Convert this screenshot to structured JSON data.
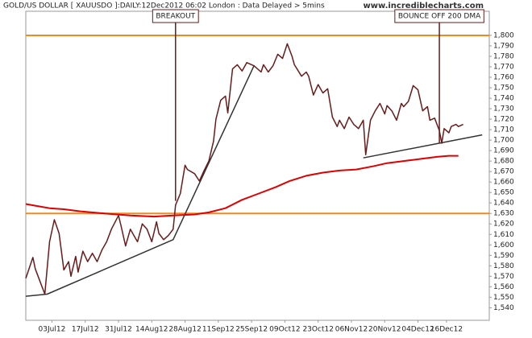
{
  "chart_data": {
    "type": "line",
    "title": "GOLD/US DOLLAR [ XAUUSDO ]:DAILY:12Dec2012 06:02 London : Data Delayed > 5mins",
    "watermark": "www.incrediblecharts.com",
    "xlim": [
      "2012-06-22",
      "2013-01-03"
    ],
    "xticks": [
      {
        "value": "2012-07-03",
        "label": "03Jul12"
      },
      {
        "value": "2012-07-17",
        "label": "17Jul12"
      },
      {
        "value": "2012-07-31",
        "label": "31Jul12"
      },
      {
        "value": "2012-08-14",
        "label": "14Aug12"
      },
      {
        "value": "2012-08-28",
        "label": "28Aug12"
      },
      {
        "value": "2012-09-11",
        "label": "11Sep12"
      },
      {
        "value": "2012-09-25",
        "label": "25Sep12"
      },
      {
        "value": "2012-10-09",
        "label": "09Oct12"
      },
      {
        "value": "2012-10-23",
        "label": "23Oct12"
      },
      {
        "value": "2012-11-06",
        "label": "06Nov12"
      },
      {
        "value": "2012-11-20",
        "label": "20Nov12"
      },
      {
        "value": "2012-12-04",
        "label": "04Dec12"
      },
      {
        "value": "2012-12-16",
        "label": "16Dec12"
      }
    ],
    "ylim": [
      1528,
      1823
    ],
    "yticks": [
      {
        "value": 1540,
        "label": "1,540"
      },
      {
        "value": 1550,
        "label": "1,550"
      },
      {
        "value": 1560,
        "label": "1,560"
      },
      {
        "value": 1570,
        "label": "1,570"
      },
      {
        "value": 1580,
        "label": "1,580"
      },
      {
        "value": 1590,
        "label": "1,590"
      },
      {
        "value": 1600,
        "label": "1,600"
      },
      {
        "value": 1610,
        "label": "1,610"
      },
      {
        "value": 1620,
        "label": "1,620"
      },
      {
        "value": 1630,
        "label": "1,630"
      },
      {
        "value": 1640,
        "label": "1,640"
      },
      {
        "value": 1650,
        "label": "1,650"
      },
      {
        "value": 1660,
        "label": "1,660"
      },
      {
        "value": 1670,
        "label": "1,670"
      },
      {
        "value": 1680,
        "label": "1,680"
      },
      {
        "value": 1690,
        "label": "1,690"
      },
      {
        "value": 1700,
        "label": "1,700"
      },
      {
        "value": 1710,
        "label": "1,710"
      },
      {
        "value": 1720,
        "label": "1,720"
      },
      {
        "value": 1730,
        "label": "1,730"
      },
      {
        "value": 1740,
        "label": "1,740"
      },
      {
        "value": 1750,
        "label": "1,750"
      },
      {
        "value": 1760,
        "label": "1,760"
      },
      {
        "value": 1770,
        "label": "1,770"
      },
      {
        "value": 1780,
        "label": "1,780"
      },
      {
        "value": 1790,
        "label": "1,790"
      },
      {
        "value": 1800,
        "label": "1,800"
      }
    ],
    "series": [
      {
        "color": "#6b1a1a",
        "width": 1.5,
        "x": [
          "2012-06-22",
          "2012-06-25",
          "2012-06-26",
          "2012-06-28",
          "2012-06-30",
          "2012-07-02",
          "2012-07-04",
          "2012-07-06",
          "2012-07-08",
          "2012-07-10",
          "2012-07-11",
          "2012-07-13",
          "2012-07-14",
          "2012-07-16",
          "2012-07-18",
          "2012-07-20",
          "2012-07-22",
          "2012-07-24",
          "2012-07-26",
          "2012-07-28",
          "2012-07-31",
          "2012-08-01",
          "2012-08-03",
          "2012-08-05",
          "2012-08-07",
          "2012-08-08",
          "2012-08-10",
          "2012-08-12",
          "2012-08-14",
          "2012-08-16",
          "2012-08-17",
          "2012-08-19",
          "2012-08-21",
          "2012-08-23",
          "2012-08-24",
          "2012-08-26",
          "2012-08-28",
          "2012-08-29",
          "2012-09-01",
          "2012-09-03",
          "2012-09-05",
          "2012-09-07",
          "2012-09-09",
          "2012-09-10",
          "2012-09-12",
          "2012-09-14",
          "2012-09-15",
          "2012-09-17",
          "2012-09-19",
          "2012-09-21",
          "2012-09-23",
          "2012-09-25",
          "2012-09-26",
          "2012-09-29",
          "2012-09-30",
          "2012-10-02",
          "2012-10-04",
          "2012-10-06",
          "2012-10-08",
          "2012-10-10",
          "2012-10-12",
          "2012-10-13",
          "2012-10-16",
          "2012-10-18",
          "2012-10-19",
          "2012-10-21",
          "2012-10-23",
          "2012-10-25",
          "2012-10-27",
          "2012-10-29",
          "2012-10-31",
          "2012-11-01",
          "2012-11-03",
          "2012-11-05",
          "2012-11-07",
          "2012-11-09",
          "2012-11-11",
          "2012-11-12",
          "2012-11-14",
          "2012-11-16",
          "2012-11-18",
          "2012-11-20",
          "2012-11-21",
          "2012-11-23",
          "2012-11-25",
          "2012-11-27",
          "2012-11-28",
          "2012-11-30",
          "2012-12-02",
          "2012-12-04",
          "2012-12-06",
          "2012-12-08",
          "2012-12-09",
          "2012-12-11",
          "2012-12-13",
          "2012-12-14",
          "2012-12-15",
          "2012-12-17",
          "2012-12-18",
          "2012-12-20",
          "2012-12-21",
          "2012-12-23"
        ],
        "values": [
          1568,
          1588,
          1577,
          1565,
          1553,
          1603,
          1624,
          1611,
          1576,
          1584,
          1570,
          1589,
          1574,
          1594,
          1584,
          1592,
          1584,
          1595,
          1603,
          1615,
          1628,
          1619,
          1599,
          1615,
          1607,
          1603,
          1620,
          1615,
          1603,
          1622,
          1611,
          1605,
          1609,
          1615,
          1638,
          1649,
          1676,
          1672,
          1668,
          1661,
          1671,
          1680,
          1699,
          1720,
          1738,
          1742,
          1726,
          1768,
          1772,
          1766,
          1774,
          1772,
          1771,
          1765,
          1772,
          1765,
          1771,
          1782,
          1778,
          1792,
          1780,
          1772,
          1761,
          1765,
          1761,
          1743,
          1753,
          1745,
          1749,
          1722,
          1713,
          1719,
          1711,
          1722,
          1715,
          1711,
          1719,
          1686,
          1719,
          1728,
          1735,
          1725,
          1733,
          1728,
          1719,
          1735,
          1732,
          1737,
          1752,
          1748,
          1728,
          1732,
          1719,
          1721,
          1709,
          1697,
          1711,
          1707,
          1713,
          1715,
          1713,
          1715
        ]
      },
      {
        "color": "#e00000",
        "width": 2,
        "x": [
          "2012-06-22",
          "2012-06-27",
          "2012-07-02",
          "2012-07-08",
          "2012-07-15",
          "2012-07-25",
          "2012-08-05",
          "2012-08-15",
          "2012-08-23",
          "2012-09-01",
          "2012-09-07",
          "2012-09-14",
          "2012-09-21",
          "2012-09-28",
          "2012-10-05",
          "2012-10-11",
          "2012-10-18",
          "2012-10-25",
          "2012-11-01",
          "2012-11-08",
          "2012-11-15",
          "2012-11-21",
          "2012-11-28",
          "2012-12-05",
          "2012-12-12",
          "2012-12-17",
          "2012-12-21"
        ],
        "values": [
          1639,
          1637,
          1635,
          1634,
          1632,
          1630,
          1628,
          1627,
          1628,
          1629,
          1631,
          1635,
          1643,
          1649,
          1655,
          1661,
          1666,
          1669,
          1671,
          1672,
          1675,
          1678,
          1680,
          1682,
          1684,
          1685,
          1685
        ]
      }
    ],
    "trendlines": [
      {
        "color": "#333333",
        "x": [
          "2012-06-22",
          "2012-07-01",
          "2012-08-23",
          "2012-09-26"
        ],
        "values": [
          1551,
          1553,
          1605,
          1771
        ]
      },
      {
        "color": "#333333",
        "x": [
          "2012-11-11",
          "2012-12-31"
        ],
        "values": [
          1683,
          1705
        ]
      }
    ],
    "hlines": [
      {
        "value": 1800,
        "color": "#f08a1c"
      },
      {
        "value": 1630,
        "color": "#f08a1c"
      }
    ],
    "annotations": [
      {
        "text": "BREAKOUT",
        "x": "2012-08-24",
        "y": 1642
      },
      {
        "text": "BOUNCE OFF 200 DMA",
        "x": "2012-12-13",
        "y": 1697
      }
    ]
  }
}
